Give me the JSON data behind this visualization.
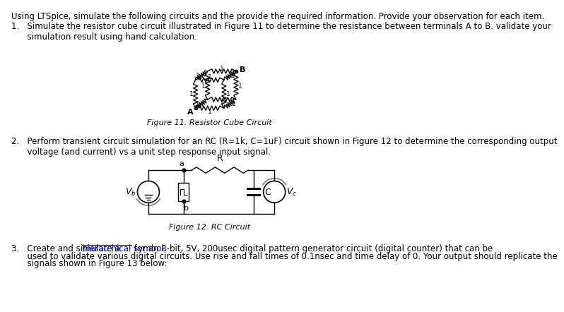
{
  "background_color": "#ffffff",
  "title_text": "Using LTSpice, simulate the following circuits and the provide the required information. Provide your observation for each item.",
  "fig11_caption": "Figure 11. Resistor Cube Circuit",
  "fig12_caption": "Figure 12. RC Circuit",
  "item3_pre": "3.   Create and simulate a ",
  "item3_link": "hierarchical symbol",
  "item3_post": " for an 8-bit, 5V, 200usec digital pattern generator circuit (digital counter) that can be",
  "item3_line2": "      used to validate various digital circuits. Use rise and fall times of 0.1nsec and time delay of 0. Your output should replicate the",
  "item3_line3": "      signals shown in Figure 13 below:",
  "font_size_title": 8.5,
  "font_size_body": 8.5,
  "font_size_caption": 8.0,
  "text_color": "#000000",
  "link_color": "#0000CD"
}
